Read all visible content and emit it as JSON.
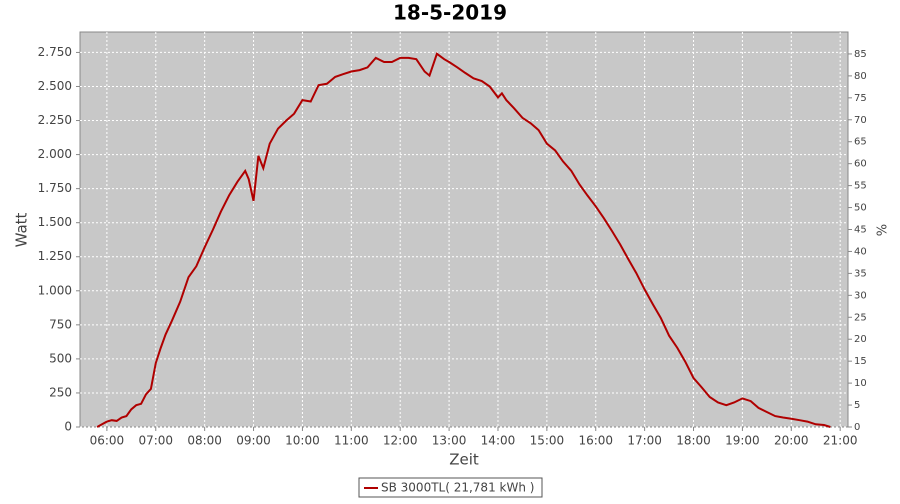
{
  "chart_data": {
    "type": "line",
    "title": "18-5-2019",
    "xlabel": "Zeit",
    "ylabel": "Watt",
    "y2label": "%",
    "x": [
      5.8,
      5.9,
      6.0,
      6.1,
      6.2,
      6.3,
      6.4,
      6.5,
      6.6,
      6.7,
      6.8,
      6.9,
      7.0,
      7.1,
      7.2,
      7.33,
      7.5,
      7.67,
      7.83,
      8.0,
      8.17,
      8.33,
      8.5,
      8.67,
      8.83,
      8.9,
      9.0,
      9.1,
      9.2,
      9.33,
      9.5,
      9.67,
      9.83,
      10.0,
      10.17,
      10.33,
      10.5,
      10.67,
      10.83,
      11.0,
      11.17,
      11.33,
      11.5,
      11.67,
      11.83,
      12.0,
      12.17,
      12.33,
      12.5,
      12.6,
      12.75,
      12.9,
      13.0,
      13.17,
      13.33,
      13.5,
      13.67,
      13.83,
      14.0,
      14.08,
      14.17,
      14.33,
      14.5,
      14.67,
      14.83,
      15.0,
      15.17,
      15.33,
      15.5,
      15.67,
      15.83,
      16.0,
      16.17,
      16.33,
      16.5,
      16.67,
      16.83,
      17.0,
      17.17,
      17.33,
      17.5,
      17.67,
      17.83,
      18.0,
      18.17,
      18.33,
      18.5,
      18.67,
      18.83,
      19.0,
      19.17,
      19.33,
      19.5,
      19.67,
      19.83,
      20.0,
      20.17,
      20.33,
      20.5,
      20.67,
      20.8
    ],
    "series": [
      {
        "name": "SB 3000TL( 21,781 kWh )",
        "color": "#b00000",
        "values": [
          0,
          20,
          40,
          50,
          45,
          70,
          80,
          130,
          160,
          170,
          240,
          280,
          470,
          580,
          680,
          780,
          920,
          1100,
          1180,
          1320,
          1450,
          1580,
          1700,
          1800,
          1880,
          1820,
          1660,
          1990,
          1900,
          2080,
          2190,
          2250,
          2300,
          2400,
          2390,
          2510,
          2520,
          2570,
          2590,
          2610,
          2620,
          2640,
          2710,
          2680,
          2680,
          2710,
          2710,
          2700,
          2610,
          2580,
          2740,
          2700,
          2680,
          2640,
          2600,
          2560,
          2540,
          2500,
          2420,
          2450,
          2400,
          2340,
          2270,
          2230,
          2180,
          2080,
          2030,
          1950,
          1880,
          1780,
          1700,
          1620,
          1530,
          1440,
          1340,
          1230,
          1130,
          1010,
          900,
          800,
          670,
          580,
          480,
          360,
          290,
          220,
          180,
          160,
          180,
          210,
          190,
          140,
          110,
          80,
          70,
          60,
          50,
          40,
          20,
          15,
          0
        ]
      }
    ],
    "xlim": [
      5.45,
      21.16
    ],
    "xticks": [
      {
        "value": 6,
        "label": "06:00"
      },
      {
        "value": 7,
        "label": "07:00"
      },
      {
        "value": 8,
        "label": "08:00"
      },
      {
        "value": 9,
        "label": "09:00"
      },
      {
        "value": 10,
        "label": "10:00"
      },
      {
        "value": 11,
        "label": "11:00"
      },
      {
        "value": 12,
        "label": "12:00"
      },
      {
        "value": 13,
        "label": "13:00"
      },
      {
        "value": 14,
        "label": "14:00"
      },
      {
        "value": 15,
        "label": "15:00"
      },
      {
        "value": 16,
        "label": "16:00"
      },
      {
        "value": 17,
        "label": "17:00"
      },
      {
        "value": 18,
        "label": "18:00"
      },
      {
        "value": 19,
        "label": "19:00"
      },
      {
        "value": 20,
        "label": "20:00"
      },
      {
        "value": 21,
        "label": "21:00"
      }
    ],
    "ylim": [
      0,
      2900
    ],
    "yticks": [
      0,
      250,
      500,
      750,
      {
        "value": 1000,
        "label": "1.000"
      },
      {
        "value": 1250,
        "label": "1.250"
      },
      {
        "value": 1500,
        "label": "1.500"
      },
      {
        "value": 1750,
        "label": "1.750"
      },
      {
        "value": 2000,
        "label": "2.000"
      },
      {
        "value": 2250,
        "label": "2.250"
      },
      {
        "value": 2500,
        "label": "2.500"
      },
      {
        "value": 2750,
        "label": "2.750"
      }
    ],
    "y2lim": [
      0,
      90
    ],
    "y2ticks": [
      0,
      5,
      10,
      15,
      20,
      25,
      30,
      35,
      40,
      45,
      50,
      55,
      60,
      65,
      70,
      75,
      80,
      85
    ],
    "grid": true
  }
}
